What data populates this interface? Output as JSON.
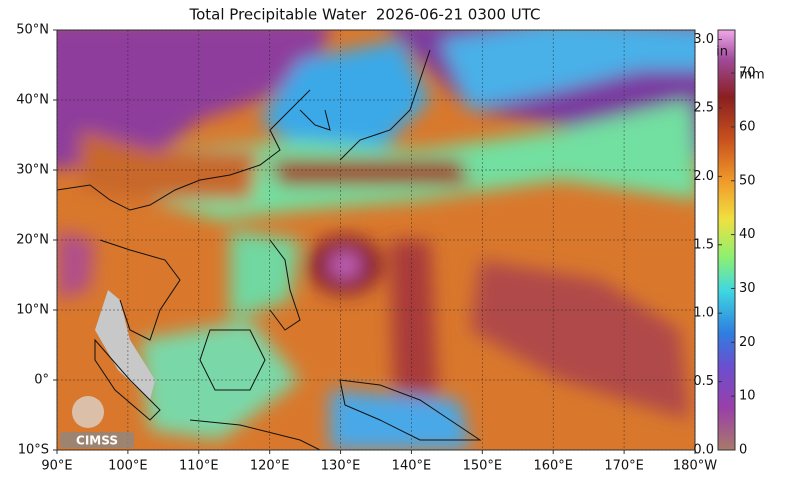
{
  "title": "Total Precipitable Water  2026-06-21 0300 UTC",
  "map": {
    "xlim": [
      90,
      180
    ],
    "ylim": [
      -10,
      50
    ],
    "xticks": [
      {
        "value": 90,
        "label": "90°E"
      },
      {
        "value": 100,
        "label": "100°E"
      },
      {
        "value": 110,
        "label": "110°E"
      },
      {
        "value": 120,
        "label": "120°E"
      },
      {
        "value": 130,
        "label": "130°E"
      },
      {
        "value": 140,
        "label": "140°E"
      },
      {
        "value": 150,
        "label": "150°E"
      },
      {
        "value": 160,
        "label": "160°E"
      },
      {
        "value": 170,
        "label": "170°E"
      },
      {
        "value": 180,
        "label": "180°W"
      }
    ],
    "yticks": [
      {
        "value": -10,
        "label": "10°S"
      },
      {
        "value": 0,
        "label": "0°"
      },
      {
        "value": 10,
        "label": "10°N"
      },
      {
        "value": 20,
        "label": "20°N"
      },
      {
        "value": 30,
        "label": "30°N"
      },
      {
        "value": 40,
        "label": "40°N"
      },
      {
        "value": 50,
        "label": "50°N"
      }
    ],
    "grid": true
  },
  "colorbar": {
    "in_label": "in",
    "mm_label": "mm",
    "in_lim": [
      0,
      3.07
    ],
    "mm_lim": [
      0,
      78
    ],
    "in_ticks": [
      {
        "value": 0,
        "label": "0.0"
      },
      {
        "value": 0.5,
        "label": "0.5"
      },
      {
        "value": 1,
        "label": "1.0"
      },
      {
        "value": 1.5,
        "label": "1.5"
      },
      {
        "value": 2,
        "label": "2.0"
      },
      {
        "value": 2.5,
        "label": "2.5"
      },
      {
        "value": 3,
        "label": "3.0"
      }
    ],
    "mm_ticks": [
      0,
      10,
      20,
      30,
      40,
      50,
      60,
      70
    ]
  },
  "logo": "CIMSS"
}
